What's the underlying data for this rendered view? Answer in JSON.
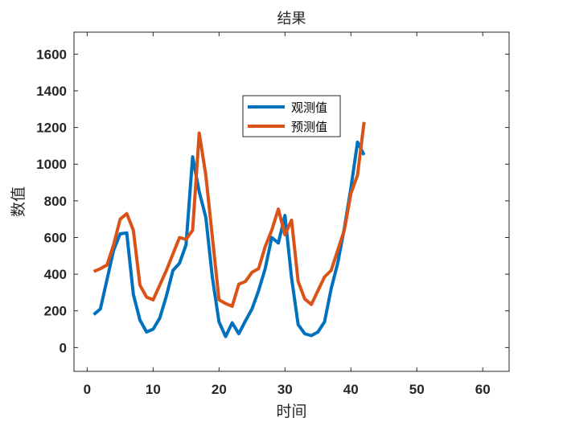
{
  "chart_data": {
    "type": "line",
    "title": "结果",
    "xlabel": "时间",
    "ylabel": "数值",
    "xlim": [
      -2,
      64
    ],
    "ylim": [
      -130,
      1720
    ],
    "xticks": [
      0,
      10,
      20,
      30,
      40,
      50,
      60
    ],
    "yticks": [
      0,
      200,
      400,
      600,
      800,
      1000,
      1200,
      1400,
      1600
    ],
    "grid": false,
    "legend_position": "top-center",
    "series": [
      {
        "name": "观测值",
        "color": "#0072BD",
        "x": [
          1,
          2,
          3,
          4,
          5,
          6,
          7,
          8,
          9,
          10,
          11,
          12,
          13,
          14,
          15,
          16,
          17,
          18,
          19,
          20,
          21,
          22,
          23,
          24,
          25,
          26,
          27,
          28,
          29,
          30,
          31,
          32,
          33,
          34,
          35,
          36,
          37,
          38,
          39,
          40,
          41,
          42
        ],
        "y": [
          180,
          210,
          370,
          530,
          620,
          625,
          290,
          150,
          85,
          100,
          160,
          280,
          420,
          460,
          560,
          1040,
          850,
          710,
          380,
          140,
          60,
          135,
          75,
          145,
          210,
          310,
          430,
          600,
          570,
          720,
          380,
          125,
          75,
          65,
          85,
          140,
          320,
          460,
          650,
          870,
          1120,
          1050
        ]
      },
      {
        "name": "预测值",
        "color": "#D95319",
        "x": [
          1,
          2,
          3,
          4,
          5,
          6,
          7,
          8,
          9,
          10,
          11,
          12,
          13,
          14,
          15,
          16,
          17,
          18,
          19,
          20,
          21,
          22,
          23,
          24,
          25,
          26,
          27,
          28,
          29,
          30,
          31,
          32,
          33,
          34,
          35,
          36,
          37,
          38,
          39,
          40,
          41,
          42
        ],
        "y": [
          415,
          430,
          450,
          560,
          700,
          730,
          640,
          340,
          275,
          260,
          340,
          420,
          510,
          600,
          590,
          640,
          1170,
          940,
          600,
          260,
          240,
          225,
          345,
          360,
          410,
          430,
          550,
          640,
          755,
          615,
          695,
          360,
          265,
          235,
          310,
          385,
          420,
          530,
          640,
          840,
          940,
          1230
        ]
      }
    ]
  }
}
